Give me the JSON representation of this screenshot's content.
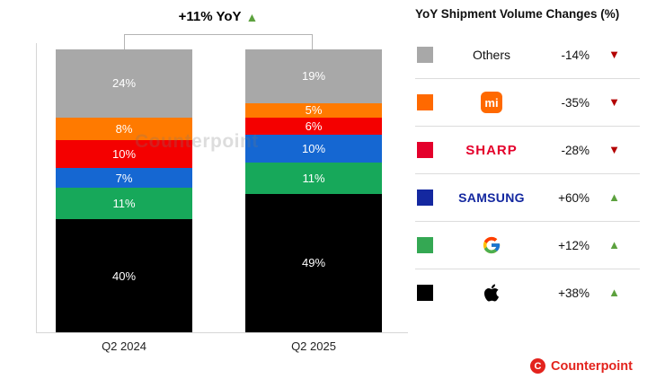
{
  "annotation": {
    "text": "+11% YoY",
    "direction": "up"
  },
  "chart_data": {
    "type": "bar",
    "stacked": true,
    "title": "YoY Shipment Volume Changes (%)",
    "categories": [
      "Q2 2024",
      "Q2 2025"
    ],
    "series": [
      {
        "name": "Apple",
        "color": "#000000",
        "values": [
          40,
          49
        ]
      },
      {
        "name": "Google",
        "color": "#17a85a",
        "values": [
          11,
          11
        ]
      },
      {
        "name": "Samsung",
        "color": "#1567d2",
        "values": [
          7,
          10
        ]
      },
      {
        "name": "Sharp",
        "color": "#f40000",
        "values": [
          10,
          6
        ]
      },
      {
        "name": "Xiaomi",
        "color": "#ff7a00",
        "values": [
          8,
          5
        ]
      },
      {
        "name": "Others",
        "color": "#a8a8a8",
        "values": [
          24,
          19
        ]
      }
    ],
    "value_suffix": "%",
    "annotation": "+11% YoY",
    "legend_position": "right",
    "grid": false
  },
  "legend": {
    "title": "YoY Shipment Volume Changes (%)",
    "rows": [
      {
        "brand": "Others",
        "swatch": "#a8a8a8",
        "change": "-14%",
        "direction": "down"
      },
      {
        "brand": "Xiaomi",
        "swatch": "#ff6900",
        "change": "-35%",
        "direction": "down",
        "logo_text": "mi"
      },
      {
        "brand": "SHARP",
        "swatch": "#e4002b",
        "change": "-28%",
        "direction": "down"
      },
      {
        "brand": "SAMSUNG",
        "swatch": "#1428a0",
        "change": "+60%",
        "direction": "up"
      },
      {
        "brand": "Google",
        "swatch": "#34a853",
        "change": "+12%",
        "direction": "up"
      },
      {
        "brand": "Apple",
        "swatch": "#000000",
        "change": "+38%",
        "direction": "up"
      }
    ]
  },
  "watermark": "Counterpoint",
  "footer": {
    "logo_text": "Counterpoint",
    "logo_letter": "C",
    "brand_color": "#e3231d"
  }
}
